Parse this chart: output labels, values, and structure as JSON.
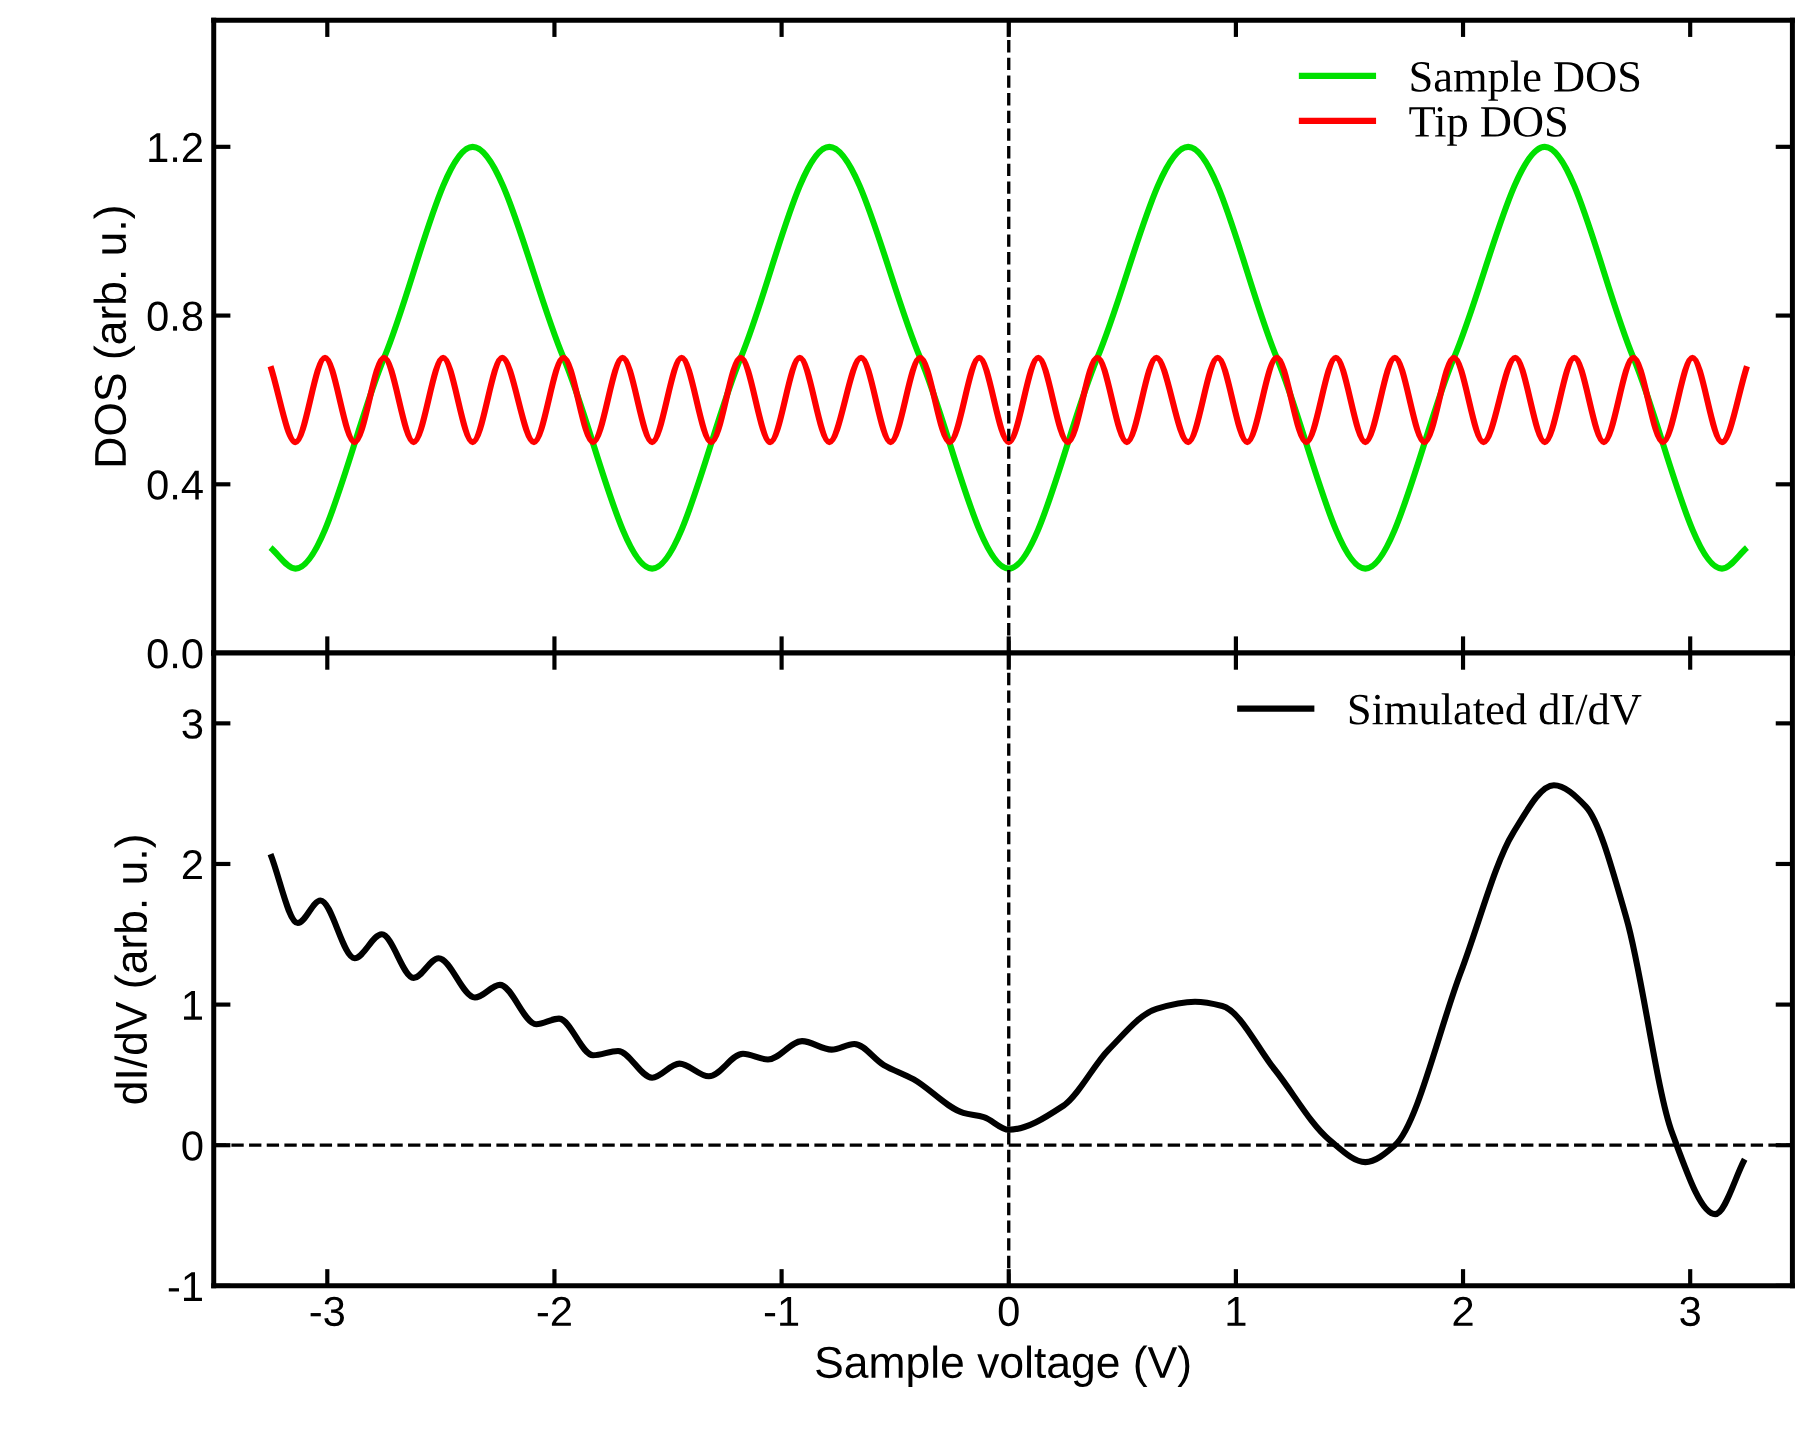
{
  "chart_data": [
    {
      "type": "line",
      "ylabel": "DOS (arb. u.)",
      "xlim": [
        -3.5,
        3.45
      ],
      "xticks": [
        -3,
        -2,
        -1,
        0,
        1,
        2,
        3
      ],
      "ylim": [
        0,
        1.5
      ],
      "yticks": [
        {
          "value": 0,
          "label": "0.0"
        },
        0.4,
        0.8,
        1.2
      ],
      "tick_labels": "y",
      "legend": "top right",
      "grid": false,
      "marker": "none",
      "line_style": "solid",
      "ref_lines": [
        {
          "axis": "x",
          "value": 0,
          "color": "#000000",
          "line_style": "dashed"
        }
      ],
      "series": [
        {
          "name": "Sample DOS",
          "color": "#00e000",
          "x": [
            -3.25,
            -3.14,
            -2.75,
            -2.36,
            -1.96,
            -1.57,
            -1.18,
            -0.79,
            -0.39,
            0,
            0.39,
            0.79,
            1.18,
            1.57,
            1.96,
            2.36,
            2.75,
            3.14,
            3.25
          ],
          "values": [
            0.25,
            0.2,
            0.7,
            1.2,
            0.7,
            0.2,
            0.7,
            1.2,
            0.7,
            0.2,
            0.7,
            1.2,
            0.7,
            0.2,
            0.7,
            1.2,
            0.7,
            0.2,
            0.25
          ]
        },
        {
          "name": "Tip DOS",
          "color": "#ff0000",
          "x": [
            -3.25,
            -3.14,
            -3.01,
            -2.88,
            -2.75,
            -2.62,
            -2.49,
            -2.36,
            -2.23,
            -2.09,
            -1.96,
            -1.83,
            -1.7,
            -1.57,
            -1.44,
            -1.31,
            -1.18,
            -1.05,
            -0.92,
            -0.79,
            -0.65,
            -0.52,
            -0.39,
            -0.26,
            -0.13,
            0,
            0.13,
            0.26,
            0.39,
            0.52,
            0.65,
            0.79,
            0.92,
            1.05,
            1.18,
            1.31,
            1.44,
            1.57,
            1.7,
            1.83,
            1.96,
            2.09,
            2.23,
            2.36,
            2.49,
            2.62,
            2.75,
            2.88,
            3.01,
            3.14,
            3.25
          ],
          "values": [
            0.68,
            0.5,
            0.7,
            0.5,
            0.7,
            0.5,
            0.7,
            0.5,
            0.7,
            0.5,
            0.7,
            0.5,
            0.7,
            0.5,
            0.7,
            0.5,
            0.7,
            0.5,
            0.7,
            0.5,
            0.7,
            0.5,
            0.7,
            0.5,
            0.7,
            0.5,
            0.7,
            0.5,
            0.7,
            0.5,
            0.7,
            0.5,
            0.7,
            0.5,
            0.7,
            0.5,
            0.7,
            0.5,
            0.7,
            0.5,
            0.7,
            0.5,
            0.7,
            0.5,
            0.7,
            0.5,
            0.7,
            0.5,
            0.7,
            0.5,
            0.68
          ]
        }
      ]
    },
    {
      "type": "line",
      "xlabel": "Sample voltage (V)",
      "ylabel": "dI/dV (arb. u.)",
      "xlim": [
        -3.5,
        3.45
      ],
      "xticks": [
        -3,
        -2,
        -1,
        0,
        1,
        2,
        3
      ],
      "ylim": [
        -1,
        3.5
      ],
      "yticks": [
        -1,
        0,
        1,
        2,
        3
      ],
      "legend": "top right",
      "grid": false,
      "marker": "none",
      "line_style": "solid",
      "ref_lines": [
        {
          "axis": "x",
          "value": 0,
          "color": "#000000",
          "line_style": "dashed"
        },
        {
          "axis": "y",
          "value": 0,
          "color": "#000000",
          "line_style": "dashed"
        }
      ],
      "series": [
        {
          "name": "Simulated dI/dV",
          "color": "#000000",
          "x": [
            -3.25,
            -3.13,
            -3.03,
            -2.88,
            -2.76,
            -2.62,
            -2.51,
            -2.35,
            -2.24,
            -2.08,
            -1.98,
            -1.83,
            -1.72,
            -1.57,
            -1.45,
            -1.32,
            -1.17,
            -1.06,
            -0.91,
            -0.78,
            -0.68,
            -0.55,
            -0.42,
            -0.2,
            -0.11,
            0,
            0.24,
            0.44,
            0.65,
            0.82,
            0.94,
            1.17,
            1.41,
            1.57,
            1.7,
            1.99,
            2.22,
            2.4,
            2.54,
            2.72,
            2.92,
            3.11,
            3.24
          ],
          "values": [
            2.07,
            1.58,
            1.74,
            1.33,
            1.5,
            1.19,
            1.33,
            1.05,
            1.14,
            0.86,
            0.9,
            0.64,
            0.67,
            0.48,
            0.58,
            0.49,
            0.65,
            0.61,
            0.74,
            0.68,
            0.72,
            0.57,
            0.47,
            0.23,
            0.2,
            0.11,
            0.28,
            0.68,
            0.97,
            1.02,
            0.99,
            0.54,
            0.04,
            -0.12,
            0,
            1.23,
            2.22,
            2.56,
            2.41,
            1.61,
            0.09,
            -0.49,
            -0.1
          ]
        }
      ]
    }
  ]
}
